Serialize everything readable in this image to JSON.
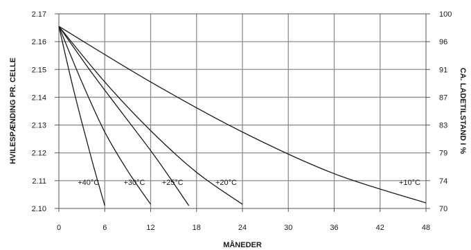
{
  "chart_data": {
    "type": "line",
    "xlabel": "MÅNEDER",
    "ylabel": "HVILESPÆNDING PR. CELLE",
    "y2label": "CA. LADETILSTAND I %",
    "xlim": [
      0,
      48
    ],
    "ylim": [
      2.1,
      2.17
    ],
    "x_ticks": [
      "0",
      "6",
      "12",
      "18",
      "24",
      "30",
      "36",
      "42",
      "48"
    ],
    "y_ticks": [
      "2.10",
      "2.11",
      "2.12",
      "2.13",
      "2.14",
      "2.15",
      "2.16",
      "2.17"
    ],
    "y2_ticks": [
      "70",
      "74",
      "79",
      "83",
      "87",
      "91",
      "96",
      "100"
    ],
    "grid": true,
    "series": [
      {
        "name": "+40°C",
        "x": [
          0,
          1.5,
          3,
          4.5,
          6
        ],
        "y": [
          2.1655,
          2.1475,
          2.131,
          2.1155,
          2.101
        ]
      },
      {
        "name": "+30°C",
        "x": [
          0,
          3,
          6,
          9,
          12
        ],
        "y": [
          2.1655,
          2.1455,
          2.1275,
          2.1135,
          2.1015
        ]
      },
      {
        "name": "+25°C",
        "x": [
          0,
          4.25,
          8.5,
          12.75,
          17
        ],
        "y": [
          2.1655,
          2.149,
          2.1335,
          2.118,
          2.101
        ]
      },
      {
        "name": "+20°C",
        "x": [
          0,
          6,
          12,
          18,
          24
        ],
        "y": [
          2.1655,
          2.1455,
          2.128,
          2.113,
          2.1015
        ]
      },
      {
        "name": "+10°C",
        "x": [
          0,
          12,
          24,
          36,
          48
        ],
        "y": [
          2.1655,
          2.1455,
          2.1275,
          2.1125,
          2.102
        ]
      }
    ]
  }
}
